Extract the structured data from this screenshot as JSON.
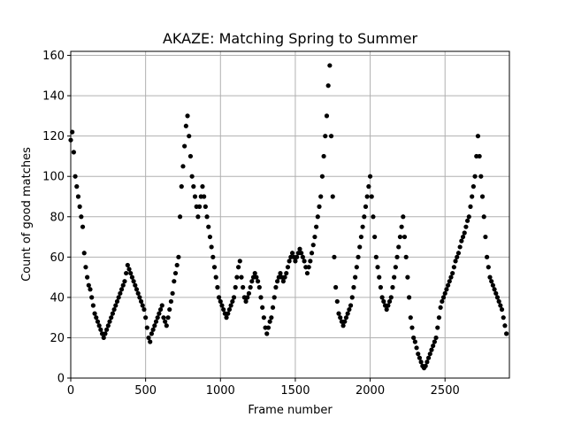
{
  "chart_data": {
    "type": "scatter",
    "title": "AKAZE: Matching Spring to Summer",
    "xlabel": "Frame number",
    "ylabel": "Count of good matches",
    "xlim": [
      0,
      2930
    ],
    "ylim": [
      0,
      162
    ],
    "xticks": [
      0,
      500,
      1000,
      1500,
      2000,
      2500
    ],
    "yticks": [
      0,
      20,
      40,
      60,
      80,
      100,
      120,
      140,
      160
    ],
    "grid": true,
    "marker_color": "#000000",
    "series": [
      {
        "points": [
          [
            0,
            118
          ],
          [
            10,
            122
          ],
          [
            20,
            112
          ],
          [
            30,
            100
          ],
          [
            40,
            95
          ],
          [
            50,
            90
          ],
          [
            60,
            85
          ],
          [
            70,
            80
          ],
          [
            80,
            75
          ],
          [
            90,
            62
          ],
          [
            100,
            55
          ],
          [
            110,
            50
          ],
          [
            120,
            46
          ],
          [
            130,
            44
          ],
          [
            140,
            40
          ],
          [
            150,
            36
          ],
          [
            160,
            32
          ],
          [
            170,
            30
          ],
          [
            180,
            28
          ],
          [
            190,
            26
          ],
          [
            200,
            24
          ],
          [
            210,
            22
          ],
          [
            220,
            20
          ],
          [
            230,
            22
          ],
          [
            240,
            24
          ],
          [
            250,
            26
          ],
          [
            260,
            28
          ],
          [
            270,
            30
          ],
          [
            280,
            32
          ],
          [
            290,
            34
          ],
          [
            300,
            36
          ],
          [
            310,
            38
          ],
          [
            320,
            40
          ],
          [
            330,
            42
          ],
          [
            340,
            44
          ],
          [
            350,
            46
          ],
          [
            360,
            48
          ],
          [
            370,
            52
          ],
          [
            380,
            56
          ],
          [
            390,
            54
          ],
          [
            400,
            52
          ],
          [
            410,
            50
          ],
          [
            420,
            48
          ],
          [
            430,
            46
          ],
          [
            440,
            44
          ],
          [
            450,
            42
          ],
          [
            460,
            40
          ],
          [
            470,
            38
          ],
          [
            480,
            36
          ],
          [
            490,
            34
          ],
          [
            500,
            30
          ],
          [
            510,
            25
          ],
          [
            520,
            20
          ],
          [
            530,
            18
          ],
          [
            540,
            22
          ],
          [
            550,
            24
          ],
          [
            560,
            26
          ],
          [
            570,
            28
          ],
          [
            580,
            30
          ],
          [
            590,
            32
          ],
          [
            600,
            34
          ],
          [
            610,
            36
          ],
          [
            620,
            30
          ],
          [
            630,
            28
          ],
          [
            640,
            26
          ],
          [
            650,
            30
          ],
          [
            660,
            34
          ],
          [
            670,
            38
          ],
          [
            680,
            42
          ],
          [
            690,
            48
          ],
          [
            700,
            52
          ],
          [
            710,
            56
          ],
          [
            720,
            60
          ],
          [
            730,
            80
          ],
          [
            740,
            95
          ],
          [
            750,
            105
          ],
          [
            760,
            115
          ],
          [
            770,
            125
          ],
          [
            780,
            130
          ],
          [
            790,
            120
          ],
          [
            800,
            110
          ],
          [
            810,
            100
          ],
          [
            820,
            95
          ],
          [
            830,
            90
          ],
          [
            840,
            85
          ],
          [
            850,
            80
          ],
          [
            860,
            85
          ],
          [
            870,
            90
          ],
          [
            880,
            95
          ],
          [
            890,
            90
          ],
          [
            900,
            85
          ],
          [
            910,
            80
          ],
          [
            920,
            75
          ],
          [
            930,
            70
          ],
          [
            940,
            65
          ],
          [
            950,
            60
          ],
          [
            960,
            55
          ],
          [
            970,
            50
          ],
          [
            980,
            45
          ],
          [
            990,
            40
          ],
          [
            1000,
            38
          ],
          [
            1010,
            36
          ],
          [
            1020,
            34
          ],
          [
            1030,
            32
          ],
          [
            1040,
            30
          ],
          [
            1050,
            32
          ],
          [
            1060,
            34
          ],
          [
            1070,
            36
          ],
          [
            1080,
            38
          ],
          [
            1090,
            40
          ],
          [
            1100,
            45
          ],
          [
            1110,
            50
          ],
          [
            1120,
            55
          ],
          [
            1130,
            58
          ],
          [
            1140,
            50
          ],
          [
            1150,
            45
          ],
          [
            1160,
            40
          ],
          [
            1170,
            38
          ],
          [
            1180,
            40
          ],
          [
            1190,
            42
          ],
          [
            1200,
            45
          ],
          [
            1210,
            48
          ],
          [
            1220,
            50
          ],
          [
            1230,
            52
          ],
          [
            1240,
            50
          ],
          [
            1250,
            48
          ],
          [
            1260,
            45
          ],
          [
            1270,
            40
          ],
          [
            1280,
            35
          ],
          [
            1290,
            30
          ],
          [
            1300,
            25
          ],
          [
            1310,
            22
          ],
          [
            1320,
            25
          ],
          [
            1330,
            28
          ],
          [
            1340,
            30
          ],
          [
            1350,
            35
          ],
          [
            1360,
            40
          ],
          [
            1370,
            45
          ],
          [
            1380,
            48
          ],
          [
            1390,
            50
          ],
          [
            1400,
            52
          ],
          [
            1410,
            50
          ],
          [
            1420,
            48
          ],
          [
            1430,
            50
          ],
          [
            1440,
            52
          ],
          [
            1450,
            55
          ],
          [
            1460,
            58
          ],
          [
            1470,
            60
          ],
          [
            1480,
            62
          ],
          [
            1490,
            60
          ],
          [
            1500,
            58
          ],
          [
            1510,
            60
          ],
          [
            1520,
            62
          ],
          [
            1530,
            64
          ],
          [
            1540,
            62
          ],
          [
            1550,
            60
          ],
          [
            1560,
            58
          ],
          [
            1570,
            55
          ],
          [
            1580,
            52
          ],
          [
            1590,
            55
          ],
          [
            1600,
            58
          ],
          [
            1610,
            62
          ],
          [
            1620,
            66
          ],
          [
            1630,
            70
          ],
          [
            1640,
            75
          ],
          [
            1650,
            80
          ],
          [
            1660,
            85
          ],
          [
            1670,
            90
          ],
          [
            1680,
            100
          ],
          [
            1690,
            110
          ],
          [
            1700,
            120
          ],
          [
            1710,
            130
          ],
          [
            1720,
            145
          ],
          [
            1730,
            155
          ],
          [
            1740,
            120
          ],
          [
            1750,
            90
          ],
          [
            1760,
            60
          ],
          [
            1770,
            45
          ],
          [
            1780,
            38
          ],
          [
            1790,
            32
          ],
          [
            1800,
            30
          ],
          [
            1810,
            28
          ],
          [
            1820,
            26
          ],
          [
            1830,
            28
          ],
          [
            1840,
            30
          ],
          [
            1850,
            32
          ],
          [
            1860,
            34
          ],
          [
            1870,
            36
          ],
          [
            1880,
            40
          ],
          [
            1890,
            45
          ],
          [
            1900,
            50
          ],
          [
            1910,
            55
          ],
          [
            1920,
            60
          ],
          [
            1930,
            65
          ],
          [
            1940,
            70
          ],
          [
            1950,
            75
          ],
          [
            1960,
            80
          ],
          [
            1970,
            85
          ],
          [
            1980,
            90
          ],
          [
            1990,
            95
          ],
          [
            2000,
            100
          ],
          [
            2010,
            90
          ],
          [
            2020,
            80
          ],
          [
            2030,
            70
          ],
          [
            2040,
            60
          ],
          [
            2050,
            55
          ],
          [
            2060,
            50
          ],
          [
            2070,
            45
          ],
          [
            2080,
            40
          ],
          [
            2090,
            38
          ],
          [
            2100,
            36
          ],
          [
            2110,
            34
          ],
          [
            2120,
            36
          ],
          [
            2130,
            38
          ],
          [
            2140,
            40
          ],
          [
            2150,
            45
          ],
          [
            2160,
            50
          ],
          [
            2170,
            55
          ],
          [
            2180,
            60
          ],
          [
            2190,
            65
          ],
          [
            2200,
            70
          ],
          [
            2210,
            75
          ],
          [
            2220,
            80
          ],
          [
            2230,
            70
          ],
          [
            2240,
            60
          ],
          [
            2250,
            50
          ],
          [
            2260,
            40
          ],
          [
            2270,
            30
          ],
          [
            2280,
            25
          ],
          [
            2290,
            20
          ],
          [
            2300,
            18
          ],
          [
            2310,
            15
          ],
          [
            2320,
            12
          ],
          [
            2330,
            10
          ],
          [
            2340,
            8
          ],
          [
            2350,
            6
          ],
          [
            2360,
            5
          ],
          [
            2370,
            6
          ],
          [
            2380,
            8
          ],
          [
            2390,
            10
          ],
          [
            2400,
            12
          ],
          [
            2410,
            14
          ],
          [
            2420,
            16
          ],
          [
            2430,
            18
          ],
          [
            2440,
            20
          ],
          [
            2450,
            25
          ],
          [
            2460,
            30
          ],
          [
            2470,
            35
          ],
          [
            2480,
            38
          ],
          [
            2490,
            40
          ],
          [
            2500,
            42
          ],
          [
            2510,
            44
          ],
          [
            2520,
            46
          ],
          [
            2530,
            48
          ],
          [
            2540,
            50
          ],
          [
            2550,
            52
          ],
          [
            2560,
            55
          ],
          [
            2570,
            58
          ],
          [
            2580,
            60
          ],
          [
            2590,
            62
          ],
          [
            2600,
            65
          ],
          [
            2610,
            68
          ],
          [
            2620,
            70
          ],
          [
            2630,
            72
          ],
          [
            2640,
            75
          ],
          [
            2650,
            78
          ],
          [
            2660,
            80
          ],
          [
            2670,
            85
          ],
          [
            2680,
            90
          ],
          [
            2690,
            95
          ],
          [
            2700,
            100
          ],
          [
            2710,
            110
          ],
          [
            2720,
            120
          ],
          [
            2730,
            110
          ],
          [
            2740,
            100
          ],
          [
            2750,
            90
          ],
          [
            2760,
            80
          ],
          [
            2770,
            70
          ],
          [
            2780,
            60
          ],
          [
            2790,
            55
          ],
          [
            2800,
            50
          ],
          [
            2810,
            48
          ],
          [
            2820,
            46
          ],
          [
            2830,
            44
          ],
          [
            2840,
            42
          ],
          [
            2850,
            40
          ],
          [
            2860,
            38
          ],
          [
            2870,
            36
          ],
          [
            2880,
            34
          ],
          [
            2890,
            30
          ],
          [
            2900,
            26
          ],
          [
            2910,
            22
          ]
        ]
      }
    ]
  }
}
